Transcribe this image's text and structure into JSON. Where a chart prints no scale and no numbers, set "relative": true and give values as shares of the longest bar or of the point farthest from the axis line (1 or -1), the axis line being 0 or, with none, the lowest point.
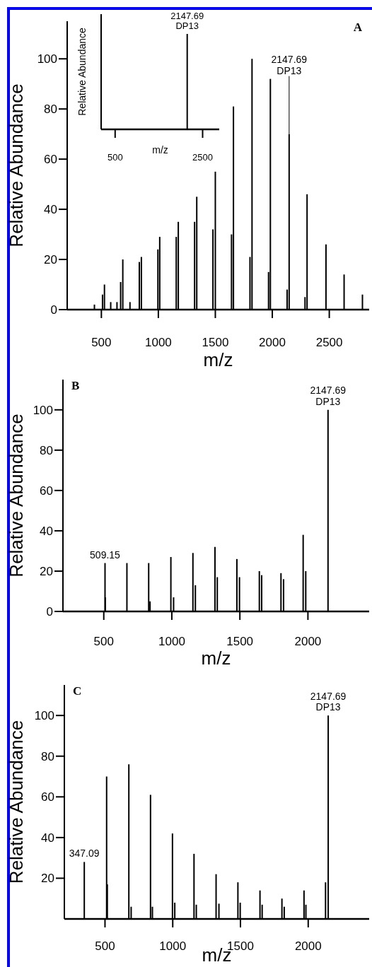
{
  "chart_data": [
    {
      "type": "bar",
      "xlabel": "m/z",
      "ylabel": "Relative Abundance",
      "xlim": [
        200,
        2850
      ],
      "ylim": [
        0,
        115
      ],
      "xticks": [
        500,
        1000,
        1500,
        2000,
        2500
      ],
      "yticks": [
        0,
        20,
        40,
        60,
        80,
        100
      ],
      "color": "#000000",
      "x": [
        439,
        510,
        527,
        582,
        637,
        669,
        688,
        751,
        833,
        851,
        996,
        1012,
        1157,
        1175,
        1318,
        1337,
        1479,
        1500,
        1642,
        1659,
        1804,
        1822,
        1967,
        1983,
        2130,
        2147.69,
        2287,
        2305,
        2471,
        2630,
        2791
      ],
      "values": [
        2,
        6,
        10,
        3,
        3,
        11,
        20,
        3,
        19,
        21,
        24,
        29,
        29,
        35,
        35,
        45,
        32,
        55,
        30,
        81,
        21,
        100,
        15,
        92,
        8,
        70,
        5,
        46,
        26,
        14,
        6
      ],
      "annotations": [
        {
          "text": "2147.69\nDP13",
          "x": 2147.69,
          "y": 70
        },
        "A"
      ]
    },
    {
      "type": "bar",
      "xlabel": "m/z",
      "ylabel": "Relative Abundance",
      "relative": true,
      "tick_labels": "x",
      "xlim": [
        180,
        2880
      ],
      "xticks": [
        500,
        2500
      ],
      "color": "#000000",
      "x": [
        2147.69
      ],
      "values": [
        1
      ],
      "annotations": [
        {
          "text": "2147.69\nDP13",
          "x": 2147.69,
          "y": 1
        }
      ]
    },
    {
      "type": "bar",
      "xlabel": "m/z",
      "ylabel": "Relative Abundance",
      "xlim": [
        200,
        2450
      ],
      "ylim": [
        0,
        115
      ],
      "xticks": [
        500,
        1000,
        1500,
        2000
      ],
      "yticks": [
        0,
        20,
        40,
        60,
        80,
        100
      ],
      "color": "#000000",
      "x": [
        509.15,
        511,
        670,
        830,
        840,
        993,
        1013,
        1155,
        1173,
        1317,
        1334,
        1478,
        1497,
        1643,
        1660,
        1802,
        1821,
        1965,
        1984,
        2147.69
      ],
      "values": [
        24,
        7,
        24,
        24,
        5,
        27,
        7,
        29,
        13,
        32,
        17,
        26,
        17,
        20,
        18,
        19,
        16,
        38,
        20,
        100
      ],
      "annotations": [
        {
          "text": "509.15",
          "x": 509.15,
          "y": 24
        },
        {
          "text": "2147.69\nDP13",
          "x": 2147.69,
          "y": 100
        },
        "B"
      ]
    },
    {
      "type": "bar",
      "xlabel": "m/z",
      "ylabel": "Relative Abundance",
      "xlim": [
        200,
        2450
      ],
      "ylim": [
        0,
        115
      ],
      "xticks": [
        500,
        1000,
        1500,
        2000
      ],
      "yticks": [
        20,
        40,
        60,
        80,
        100
      ],
      "color": "#000000",
      "x": [
        347.09,
        512,
        517,
        676,
        693,
        836,
        850,
        998,
        1015,
        1157,
        1174,
        1320,
        1341,
        1481,
        1498,
        1644,
        1660,
        1806,
        1823,
        1969,
        1983,
        2128,
        2147.69
      ],
      "values": [
        28,
        70,
        17,
        76,
        6,
        61,
        6,
        42,
        8,
        32,
        7,
        22,
        7.5,
        18,
        8,
        14,
        7,
        10,
        6,
        14,
        7,
        18,
        100
      ],
      "annotations": [
        {
          "text": "347.09",
          "x": 347.09,
          "y": 28
        },
        {
          "text": "2147.69\nDP13",
          "x": 2147.69,
          "y": 100
        },
        "C"
      ]
    }
  ]
}
